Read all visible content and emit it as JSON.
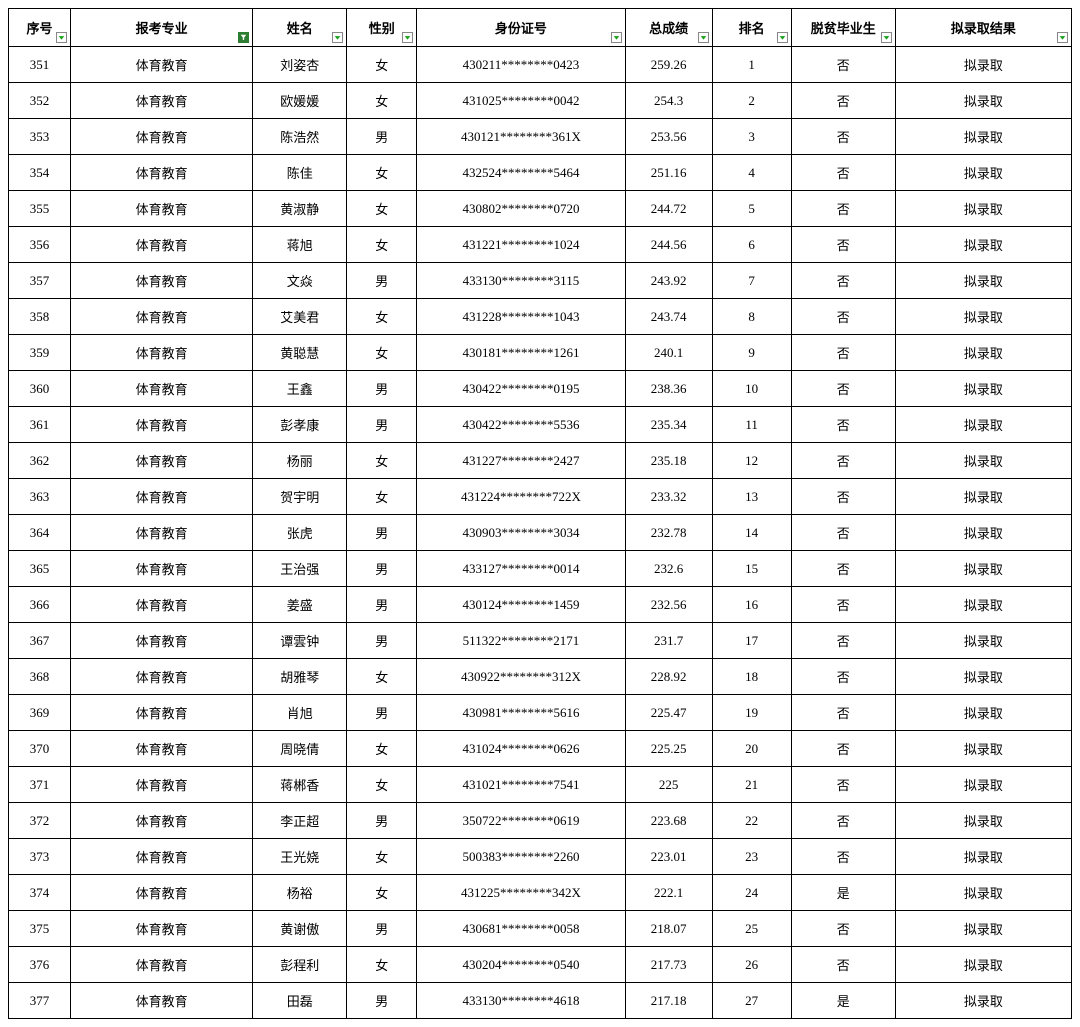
{
  "table": {
    "columns": [
      {
        "key": "seq",
        "label": "序号",
        "class": "col-seq",
        "filter": "normal"
      },
      {
        "key": "major",
        "label": "报考专业",
        "class": "col-major",
        "filter": "active"
      },
      {
        "key": "name",
        "label": "姓名",
        "class": "col-name",
        "filter": "normal"
      },
      {
        "key": "gender",
        "label": "性别",
        "class": "col-gender",
        "filter": "normal"
      },
      {
        "key": "id",
        "label": "身份证号",
        "class": "col-id",
        "filter": "normal"
      },
      {
        "key": "score",
        "label": "总成绩",
        "class": "col-score",
        "filter": "normal"
      },
      {
        "key": "rank",
        "label": "排名",
        "class": "col-rank",
        "filter": "normal"
      },
      {
        "key": "poverty",
        "label": "脱贫毕业生",
        "class": "col-poverty",
        "filter": "normal"
      },
      {
        "key": "result",
        "label": "拟录取结果",
        "class": "col-result",
        "filter": "normal"
      }
    ],
    "rows": [
      {
        "seq": "351",
        "major": "体育教育",
        "name": "刘姿杏",
        "gender": "女",
        "id": "430211********0423",
        "score": "259.26",
        "rank": "1",
        "poverty": "否",
        "result": "拟录取"
      },
      {
        "seq": "352",
        "major": "体育教育",
        "name": "欧媛媛",
        "gender": "女",
        "id": "431025********0042",
        "score": "254.3",
        "rank": "2",
        "poverty": "否",
        "result": "拟录取"
      },
      {
        "seq": "353",
        "major": "体育教育",
        "name": "陈浩然",
        "gender": "男",
        "id": "430121********361X",
        "score": "253.56",
        "rank": "3",
        "poverty": "否",
        "result": "拟录取"
      },
      {
        "seq": "354",
        "major": "体育教育",
        "name": "陈佳",
        "gender": "女",
        "id": "432524********5464",
        "score": "251.16",
        "rank": "4",
        "poverty": "否",
        "result": "拟录取"
      },
      {
        "seq": "355",
        "major": "体育教育",
        "name": "黄淑静",
        "gender": "女",
        "id": "430802********0720",
        "score": "244.72",
        "rank": "5",
        "poverty": "否",
        "result": "拟录取"
      },
      {
        "seq": "356",
        "major": "体育教育",
        "name": "蒋旭",
        "gender": "女",
        "id": "431221********1024",
        "score": "244.56",
        "rank": "6",
        "poverty": "否",
        "result": "拟录取"
      },
      {
        "seq": "357",
        "major": "体育教育",
        "name": "文焱",
        "gender": "男",
        "id": "433130********3115",
        "score": "243.92",
        "rank": "7",
        "poverty": "否",
        "result": "拟录取"
      },
      {
        "seq": "358",
        "major": "体育教育",
        "name": "艾美君",
        "gender": "女",
        "id": "431228********1043",
        "score": "243.74",
        "rank": "8",
        "poverty": "否",
        "result": "拟录取"
      },
      {
        "seq": "359",
        "major": "体育教育",
        "name": "黄聪慧",
        "gender": "女",
        "id": "430181********1261",
        "score": "240.1",
        "rank": "9",
        "poverty": "否",
        "result": "拟录取"
      },
      {
        "seq": "360",
        "major": "体育教育",
        "name": "王鑫",
        "gender": "男",
        "id": "430422********0195",
        "score": "238.36",
        "rank": "10",
        "poverty": "否",
        "result": "拟录取"
      },
      {
        "seq": "361",
        "major": "体育教育",
        "name": "彭孝康",
        "gender": "男",
        "id": "430422********5536",
        "score": "235.34",
        "rank": "11",
        "poverty": "否",
        "result": "拟录取"
      },
      {
        "seq": "362",
        "major": "体育教育",
        "name": "杨丽",
        "gender": "女",
        "id": "431227********2427",
        "score": "235.18",
        "rank": "12",
        "poverty": "否",
        "result": "拟录取"
      },
      {
        "seq": "363",
        "major": "体育教育",
        "name": "贺宇明",
        "gender": "女",
        "id": "431224********722X",
        "score": "233.32",
        "rank": "13",
        "poverty": "否",
        "result": "拟录取"
      },
      {
        "seq": "364",
        "major": "体育教育",
        "name": "张虎",
        "gender": "男",
        "id": "430903********3034",
        "score": "232.78",
        "rank": "14",
        "poverty": "否",
        "result": "拟录取"
      },
      {
        "seq": "365",
        "major": "体育教育",
        "name": "王治强",
        "gender": "男",
        "id": "433127********0014",
        "score": "232.6",
        "rank": "15",
        "poverty": "否",
        "result": "拟录取"
      },
      {
        "seq": "366",
        "major": "体育教育",
        "name": "姜盛",
        "gender": "男",
        "id": "430124********1459",
        "score": "232.56",
        "rank": "16",
        "poverty": "否",
        "result": "拟录取"
      },
      {
        "seq": "367",
        "major": "体育教育",
        "name": "谭雲钟",
        "gender": "男",
        "id": "511322********2171",
        "score": "231.7",
        "rank": "17",
        "poverty": "否",
        "result": "拟录取"
      },
      {
        "seq": "368",
        "major": "体育教育",
        "name": "胡雅琴",
        "gender": "女",
        "id": "430922********312X",
        "score": "228.92",
        "rank": "18",
        "poverty": "否",
        "result": "拟录取"
      },
      {
        "seq": "369",
        "major": "体育教育",
        "name": "肖旭",
        "gender": "男",
        "id": "430981********5616",
        "score": "225.47",
        "rank": "19",
        "poverty": "否",
        "result": "拟录取"
      },
      {
        "seq": "370",
        "major": "体育教育",
        "name": "周晓倩",
        "gender": "女",
        "id": "431024********0626",
        "score": "225.25",
        "rank": "20",
        "poverty": "否",
        "result": "拟录取"
      },
      {
        "seq": "371",
        "major": "体育教育",
        "name": "蒋郴香",
        "gender": "女",
        "id": "431021********7541",
        "score": "225",
        "rank": "21",
        "poverty": "否",
        "result": "拟录取"
      },
      {
        "seq": "372",
        "major": "体育教育",
        "name": "李正超",
        "gender": "男",
        "id": "350722********0619",
        "score": "223.68",
        "rank": "22",
        "poverty": "否",
        "result": "拟录取"
      },
      {
        "seq": "373",
        "major": "体育教育",
        "name": "王光娆",
        "gender": "女",
        "id": "500383********2260",
        "score": "223.01",
        "rank": "23",
        "poverty": "否",
        "result": "拟录取"
      },
      {
        "seq": "374",
        "major": "体育教育",
        "name": "杨裕",
        "gender": "女",
        "id": "431225********342X",
        "score": "222.1",
        "rank": "24",
        "poverty": "是",
        "result": "拟录取"
      },
      {
        "seq": "375",
        "major": "体育教育",
        "name": "黄谢傲",
        "gender": "男",
        "id": "430681********0058",
        "score": "218.07",
        "rank": "25",
        "poverty": "否",
        "result": "拟录取"
      },
      {
        "seq": "376",
        "major": "体育教育",
        "name": "彭程利",
        "gender": "女",
        "id": "430204********0540",
        "score": "217.73",
        "rank": "26",
        "poverty": "否",
        "result": "拟录取"
      },
      {
        "seq": "377",
        "major": "体育教育",
        "name": "田磊",
        "gender": "男",
        "id": "433130********4618",
        "score": "217.18",
        "rank": "27",
        "poverty": "是",
        "result": "拟录取"
      }
    ],
    "border_color": "#000000",
    "background_color": "#ffffff",
    "font_size": 13,
    "header_font_weight": "bold",
    "filter_arrow_color": "#16a016",
    "filter_active_bg": "#2d7d32"
  }
}
